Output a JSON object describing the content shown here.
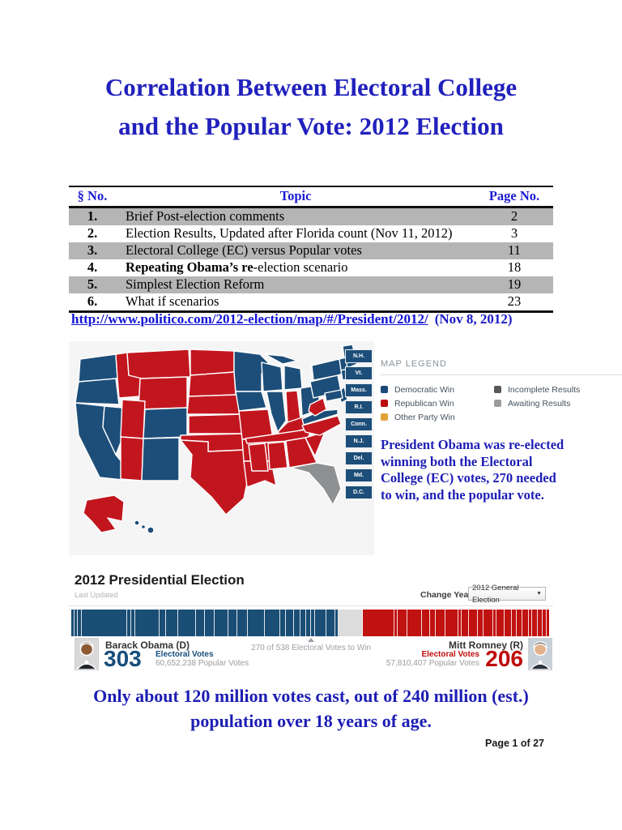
{
  "page": {
    "title_line1": "Correlation Between Electoral College",
    "title_line2": "and the Popular Vote: 2012 Election",
    "footer": "Page 1 of 27"
  },
  "toc": {
    "headers": {
      "no": "§ No.",
      "topic": "Topic",
      "page": "Page No."
    },
    "rows": [
      {
        "no": "1.",
        "topic_b": "",
        "topic": "Brief Post-election comments",
        "page": "2"
      },
      {
        "no": "2.",
        "topic_b": "",
        "topic": "Election Results, Updated after Florida count (Nov 11, 2012)",
        "page": "3"
      },
      {
        "no": "3.",
        "topic_b": "",
        "topic": "Electoral College (EC) versus Popular votes",
        "page": "11"
      },
      {
        "no": "4.",
        "topic_b": "Repeating Obama’s re",
        "topic": "-election scenario",
        "page": "18"
      },
      {
        "no": "5.",
        "topic_b": "",
        "topic": "Simplest Election Reform",
        "page": "19"
      },
      {
        "no": "6.",
        "topic_b": "",
        "topic": "What if scenarios",
        "page": "23"
      }
    ]
  },
  "source_link": {
    "url_text": "http://www.politico.com/2012-election/map/#/President/2012/",
    "date_note": "(Nov 8, 2012)"
  },
  "map": {
    "state_labels": [
      "N.H.",
      "Vt.",
      "Mass.",
      "R.I.",
      "Conn.",
      "N.J.",
      "Del.",
      "Md.",
      "D.C."
    ],
    "legend": {
      "title": "MAP LEGEND",
      "items_col1": [
        {
          "label": "Democratic Win",
          "color": "#1b4a7a"
        },
        {
          "label": "Republican Win",
          "color": "#bb0d0d"
        },
        {
          "label": "Other Party Win",
          "color": "#e2a33c"
        }
      ],
      "items_col2": [
        {
          "label": "Incomplete Results",
          "color": "#58595b"
        },
        {
          "label": "Awaiting Results",
          "color": "#9a9c9e"
        }
      ]
    },
    "colors": {
      "dem": "#1d4e79",
      "rep": "#c2161f",
      "awaiting": "#8e9092",
      "background": "#f5f5f6"
    },
    "parties": {
      "dem": [
        "WA",
        "OR",
        "CA",
        "NV",
        "CO",
        "NM",
        "MN",
        "IA",
        "WI",
        "IL",
        "MIUP",
        "MI",
        "OH",
        "VA",
        "PA",
        "NY",
        "ME",
        "NENG",
        "MASS",
        "NJ",
        "MDDE",
        "HI1",
        "HI2",
        "HI3"
      ],
      "rep": [
        "ID",
        "MT",
        "WY",
        "UT",
        "AZ",
        "ND",
        "SD",
        "NE",
        "KS",
        "OK",
        "TX",
        "MO",
        "AR",
        "LA",
        "IN",
        "KY",
        "TN",
        "MS",
        "AL",
        "GA",
        "SC",
        "NC",
        "WV",
        "AK"
      ],
      "awaiting": [
        "FL"
      ]
    }
  },
  "note_right": "President Obama was re-elected winning both the Electoral College (EC) votes, 270 needed to win, and the popular vote.",
  "widget": {
    "title": "2012 Presidential Election",
    "subtitle": "Last Updated",
    "change_year_label": "Change Year",
    "year_selected": "2012 General Election",
    "caret": "▼",
    "bar": {
      "total": 538,
      "needed": 270,
      "marker_text": "270 of 538 Electoral Votes to Win",
      "dem_color": "#1a4e74",
      "rep_color": "#c11212",
      "gap_color": "#dcdcdc",
      "gap_ev": 29,
      "dem_segments": [
        3,
        3,
        4,
        55,
        4,
        4,
        29,
        7,
        14,
        20,
        10,
        11,
        16,
        10,
        12,
        20,
        18,
        6,
        9,
        7,
        6,
        5,
        4,
        13,
        10,
        3
      ],
      "rep_segments": [
        38,
        3,
        11,
        16,
        9,
        6,
        11,
        15,
        3,
        8,
        10,
        6,
        11,
        3,
        9,
        8,
        5,
        6,
        7,
        3,
        6,
        5,
        4,
        3
      ]
    },
    "dem": {
      "name": "Barack Obama (D)",
      "ev": "303",
      "ev_label": "Electoral Votes",
      "popular": "60,652,238 Popular Votes"
    },
    "rep": {
      "name": "Mitt Romney (R)",
      "ev": "206",
      "ev_label": "Electoral Votes",
      "popular": "57,810,407 Popular Votes"
    }
  },
  "bottom_note_line1": "Only about 120 million votes cast, out of 240 million (est.)",
  "bottom_note_line2": "population over 18 years of age."
}
